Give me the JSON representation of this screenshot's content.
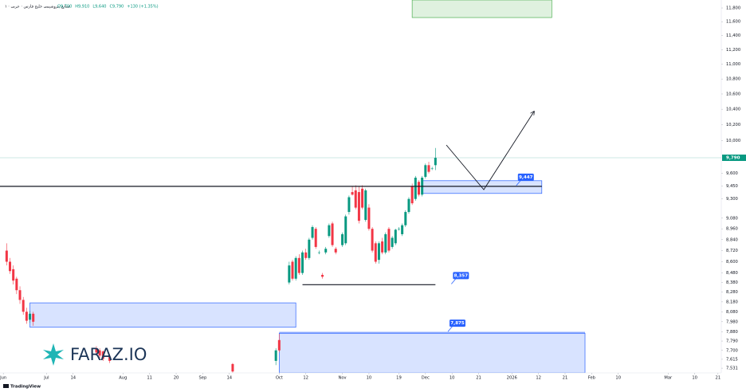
{
  "chart_data": {
    "type": "candlestick",
    "title": "۱ · صنایع پتروشیمی خلیج فارس · عربی",
    "ohlc_labels": [
      "O9,700",
      "H9,910",
      "L9,640",
      "C9,790",
      "+130 (+1.35%)"
    ],
    "watermark": "FARAZ.IO",
    "footer": "TradingView",
    "log_scale": true,
    "grid": false,
    "up_color": "#089981",
    "down_color": "#f23645",
    "xlim": [
      -7,
      210
    ],
    "ylim": [
      7487,
      11918
    ],
    "xticks": [
      {
        "value": -6,
        "label": "Jun"
      },
      {
        "value": 7,
        "label": "Jul"
      },
      {
        "value": 15,
        "label": "14"
      },
      {
        "value": 30,
        "label": "Aug"
      },
      {
        "value": 38,
        "label": "11"
      },
      {
        "value": 46,
        "label": "20"
      },
      {
        "value": 54,
        "label": "Sep"
      },
      {
        "value": 62,
        "label": "14"
      },
      {
        "value": 77,
        "label": "Oct"
      },
      {
        "value": 85,
        "label": "12"
      },
      {
        "value": 96,
        "label": "Nov"
      },
      {
        "value": 104,
        "label": "10"
      },
      {
        "value": 113,
        "label": "19"
      },
      {
        "value": 121,
        "label": "Dec"
      },
      {
        "value": 129,
        "label": "10"
      },
      {
        "value": 137,
        "label": "21"
      },
      {
        "value": 147,
        "label": "2026"
      },
      {
        "value": 155,
        "label": "12"
      },
      {
        "value": 163,
        "label": "21"
      },
      {
        "value": 171,
        "label": "Feb"
      },
      {
        "value": 179,
        "label": "10"
      },
      {
        "value": 194,
        "label": "Mar"
      },
      {
        "value": 202,
        "label": "10"
      },
      {
        "value": 209,
        "label": "21"
      }
    ],
    "yticks": [
      {
        "value": 11800,
        "label": "11,800"
      },
      {
        "value": 11600,
        "label": "11,600"
      },
      {
        "value": 11400,
        "label": "11,400"
      },
      {
        "value": 11200,
        "label": "11,200"
      },
      {
        "value": 11000,
        "label": "11,000"
      },
      {
        "value": 10800,
        "label": "10,800"
      },
      {
        "value": 10600,
        "label": "10,600"
      },
      {
        "value": 10400,
        "label": "10,400"
      },
      {
        "value": 10200,
        "label": "10,200"
      },
      {
        "value": 10000,
        "label": "10,000"
      },
      {
        "value": 9600,
        "label": "9,600"
      },
      {
        "value": 9450,
        "label": "9,450"
      },
      {
        "value": 9300,
        "label": "9,300"
      },
      {
        "value": 9080,
        "label": "9,080"
      },
      {
        "value": 8960,
        "label": "8,960"
      },
      {
        "value": 8840,
        "label": "8,840"
      },
      {
        "value": 8720,
        "label": "8,720"
      },
      {
        "value": 8600,
        "label": "8,600"
      },
      {
        "value": 8480,
        "label": "8,480"
      },
      {
        "value": 8380,
        "label": "8,380"
      },
      {
        "value": 8280,
        "label": "8,280"
      },
      {
        "value": 8180,
        "label": "8,180"
      },
      {
        "value": 8080,
        "label": "8,080"
      },
      {
        "value": 7980,
        "label": "7,980"
      },
      {
        "value": 7880,
        "label": "7,880"
      },
      {
        "value": 7790,
        "label": "7,790"
      },
      {
        "value": 7700,
        "label": "7,700"
      },
      {
        "value": 7615,
        "label": "7,615"
      },
      {
        "value": 7531,
        "label": "7,531"
      }
    ],
    "last": {
      "value": 9790,
      "label": "9,790"
    },
    "candles": [
      {
        "t": -5,
        "o": 8720,
        "h": 8800,
        "l": 8560,
        "c": 8600
      },
      {
        "t": -4,
        "o": 8600,
        "h": 8640,
        "l": 8470,
        "c": 8500
      },
      {
        "t": -3,
        "o": 8520,
        "h": 8560,
        "l": 8360,
        "c": 8400
      },
      {
        "t": -2,
        "o": 8420,
        "h": 8440,
        "l": 8260,
        "c": 8300
      },
      {
        "t": -1,
        "o": 8300,
        "h": 8340,
        "l": 8160,
        "c": 8200
      },
      {
        "t": 0,
        "o": 8200,
        "h": 8230,
        "l": 8050,
        "c": 8080
      },
      {
        "t": 1,
        "o": 8080,
        "h": 8120,
        "l": 7960,
        "c": 7990
      },
      {
        "t": 2,
        "o": 8000,
        "h": 8090,
        "l": 7970,
        "c": 8060
      },
      {
        "t": 3,
        "o": 8060,
        "h": 8080,
        "l": 7940,
        "c": 7980
      },
      {
        "t": 22,
        "o": 7720,
        "h": 7740,
        "l": 7660,
        "c": 7680
      },
      {
        "t": 23,
        "o": 7700,
        "h": 7720,
        "l": 7630,
        "c": 7650
      },
      {
        "t": 24,
        "o": 7690,
        "h": 7700,
        "l": 7600,
        "c": 7620
      },
      {
        "t": 26,
        "o": 7640,
        "h": 7660,
        "l": 7580,
        "c": 7600
      },
      {
        "t": 63,
        "o": 7570,
        "h": 7580,
        "l": 7490,
        "c": 7500
      },
      {
        "t": 76,
        "o": 7600,
        "h": 7720,
        "l": 7560,
        "c": 7700
      },
      {
        "t": 77,
        "o": 7800,
        "h": 7860,
        "l": 7680,
        "c": 7700
      },
      {
        "t": 80,
        "o": 8380,
        "h": 8600,
        "l": 8360,
        "c": 8560
      },
      {
        "t": 81,
        "o": 8600,
        "h": 8620,
        "l": 8400,
        "c": 8420
      },
      {
        "t": 82,
        "o": 8420,
        "h": 8660,
        "l": 8400,
        "c": 8640
      },
      {
        "t": 83,
        "o": 8640,
        "h": 8680,
        "l": 8460,
        "c": 8480
      },
      {
        "t": 84,
        "o": 8480,
        "h": 8720,
        "l": 8460,
        "c": 8700
      },
      {
        "t": 85,
        "o": 8700,
        "h": 8740,
        "l": 8620,
        "c": 8640
      },
      {
        "t": 86,
        "o": 8640,
        "h": 8860,
        "l": 8620,
        "c": 8840
      },
      {
        "t": 87,
        "o": 8860,
        "h": 9000,
        "l": 8840,
        "c": 8980
      },
      {
        "t": 88,
        "o": 8960,
        "h": 8980,
        "l": 8740,
        "c": 8760
      },
      {
        "t": 89,
        "o": 8700,
        "h": 8720,
        "l": 8680,
        "c": 8700
      },
      {
        "t": 90,
        "o": 8460,
        "h": 8480,
        "l": 8420,
        "c": 8440
      },
      {
        "t": 91,
        "o": 8700,
        "h": 8760,
        "l": 8680,
        "c": 8740
      },
      {
        "t": 92,
        "o": 8880,
        "h": 9020,
        "l": 8860,
        "c": 9000
      },
      {
        "t": 93,
        "o": 9020,
        "h": 9040,
        "l": 8760,
        "c": 8780
      },
      {
        "t": 94,
        "o": 8740,
        "h": 8760,
        "l": 8680,
        "c": 8700
      },
      {
        "t": 96,
        "o": 8780,
        "h": 8920,
        "l": 8760,
        "c": 8900
      },
      {
        "t": 97,
        "o": 8800,
        "h": 9120,
        "l": 8780,
        "c": 9100
      },
      {
        "t": 98,
        "o": 9150,
        "h": 9340,
        "l": 9120,
        "c": 9320
      },
      {
        "t": 99,
        "o": 9380,
        "h": 9450,
        "l": 9340,
        "c": 9350
      },
      {
        "t": 100,
        "o": 9400,
        "h": 9460,
        "l": 9180,
        "c": 9200
      },
      {
        "t": 101,
        "o": 9380,
        "h": 9450,
        "l": 9020,
        "c": 9050
      },
      {
        "t": 102,
        "o": 9420,
        "h": 9460,
        "l": 9180,
        "c": 9200
      },
      {
        "t": 103,
        "o": 9060,
        "h": 9420,
        "l": 9040,
        "c": 9400
      },
      {
        "t": 104,
        "o": 9200,
        "h": 9240,
        "l": 8940,
        "c": 8960
      },
      {
        "t": 105,
        "o": 8960,
        "h": 8980,
        "l": 8700,
        "c": 8720
      },
      {
        "t": 106,
        "o": 8800,
        "h": 8820,
        "l": 8580,
        "c": 8600
      },
      {
        "t": 107,
        "o": 8620,
        "h": 8820,
        "l": 8580,
        "c": 8800
      },
      {
        "t": 108,
        "o": 8820,
        "h": 8860,
        "l": 8680,
        "c": 8700
      },
      {
        "t": 109,
        "o": 8700,
        "h": 8920,
        "l": 8680,
        "c": 8900
      },
      {
        "t": 110,
        "o": 8960,
        "h": 8980,
        "l": 8700,
        "c": 8720
      },
      {
        "t": 111,
        "o": 8760,
        "h": 8880,
        "l": 8740,
        "c": 8860
      },
      {
        "t": 112,
        "o": 8800,
        "h": 8960,
        "l": 8780,
        "c": 8950
      },
      {
        "t": 113,
        "o": 8960,
        "h": 8980,
        "l": 8940,
        "c": 8960
      },
      {
        "t": 114,
        "o": 8900,
        "h": 9020,
        "l": 8880,
        "c": 9000
      },
      {
        "t": 115,
        "o": 9000,
        "h": 9170,
        "l": 8980,
        "c": 9150
      },
      {
        "t": 116,
        "o": 9150,
        "h": 9320,
        "l": 9130,
        "c": 9300
      },
      {
        "t": 117,
        "o": 9450,
        "h": 9480,
        "l": 9230,
        "c": 9250
      },
      {
        "t": 118,
        "o": 9300,
        "h": 9570,
        "l": 9280,
        "c": 9550
      },
      {
        "t": 119,
        "o": 9500,
        "h": 9520,
        "l": 9330,
        "c": 9350
      },
      {
        "t": 120,
        "o": 9350,
        "h": 9570,
        "l": 9330,
        "c": 9550
      },
      {
        "t": 121,
        "o": 9560,
        "h": 9720,
        "l": 9540,
        "c": 9700
      },
      {
        "t": 122,
        "o": 9700,
        "h": 9740,
        "l": 9600,
        "c": 9620
      },
      {
        "t": 123,
        "o": 9660,
        "h": 9680,
        "l": 9640,
        "c": 9660
      },
      {
        "t": 124,
        "o": 9700,
        "h": 9910,
        "l": 9640,
        "c": 9790
      }
    ],
    "zones": [
      {
        "from": 2,
        "to": 82,
        "low": 7925,
        "high": 8170,
        "color": "#2962ff"
      },
      {
        "from": 120,
        "to": 156,
        "low": 9364,
        "high": 9514,
        "color": "#2962ff"
      },
      {
        "from": 77,
        "to": 169,
        "low": 7487,
        "high": 7866,
        "color": "#2962ff"
      },
      {
        "from": 117,
        "to": 159,
        "low": 11660,
        "high": 11918,
        "color": "#4caf50"
      }
    ],
    "levels": [
      {
        "value": 9447,
        "label": "9,447",
        "from": -7,
        "to": 156,
        "color": "#131722"
      },
      {
        "value": 8357,
        "label": "8,357",
        "from": 84,
        "to": 124,
        "color": "#131722"
      },
      {
        "value": 7875,
        "label": "7,875",
        "from": 77,
        "to": 169,
        "color": "#2962ff"
      }
    ]
  }
}
